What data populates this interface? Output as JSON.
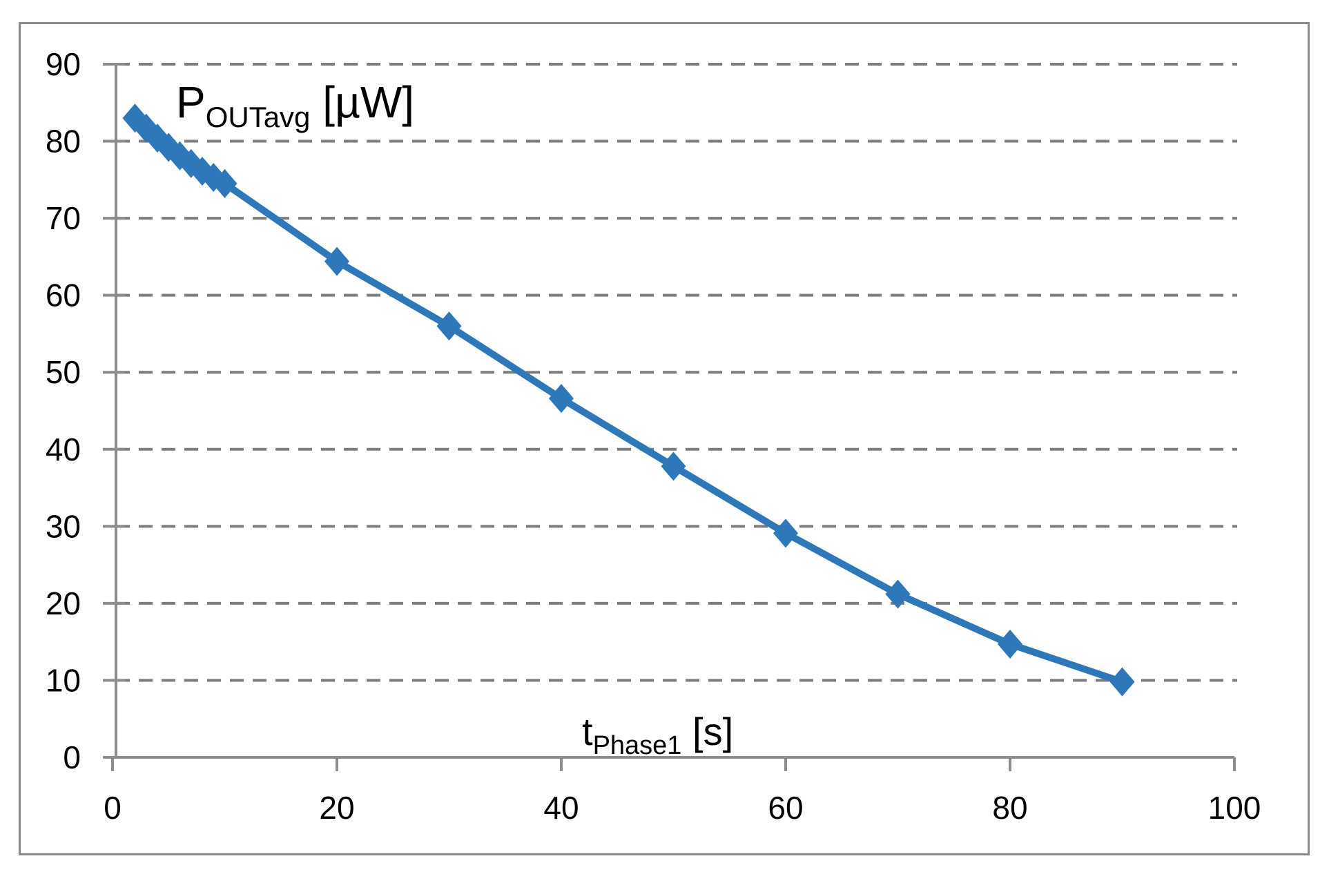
{
  "figure": {
    "background": "#ffffff",
    "border_color": "#8a8a8a"
  },
  "chart_data": {
    "type": "line",
    "title": {
      "main": "P",
      "sub": "OUTavg",
      "unit": " [µW]"
    },
    "xlabel": {
      "main": "t",
      "sub": "Phase1",
      "unit": " [s]"
    },
    "ylabel": "",
    "series": [
      {
        "name": "POUTavg",
        "color": "#2E77B8",
        "marker": "diamond",
        "points": [
          [
            2,
            83.0
          ],
          [
            3,
            81.7
          ],
          [
            4,
            80.4
          ],
          [
            5,
            79.2
          ],
          [
            6,
            78.1
          ],
          [
            7,
            77.1
          ],
          [
            8,
            76.1
          ],
          [
            9,
            75.3
          ],
          [
            10,
            74.5
          ],
          [
            20,
            64.4
          ],
          [
            30,
            56.0
          ],
          [
            40,
            46.6
          ],
          [
            50,
            37.8
          ],
          [
            60,
            29.1
          ],
          [
            70,
            21.2
          ],
          [
            80,
            14.7
          ],
          [
            90,
            9.8
          ]
        ]
      }
    ],
    "xlim": [
      0,
      100
    ],
    "ylim": [
      0,
      90
    ],
    "x_ticks": [
      0,
      20,
      40,
      60,
      80,
      100
    ],
    "y_ticks": [
      0,
      10,
      20,
      30,
      40,
      50,
      60,
      70,
      80,
      90
    ],
    "grid": "horizontal-dashed",
    "legend": "none",
    "axis_color": "#8C8C8C",
    "grid_color": "#7D7D7D",
    "tick_label_color": "#000000"
  }
}
